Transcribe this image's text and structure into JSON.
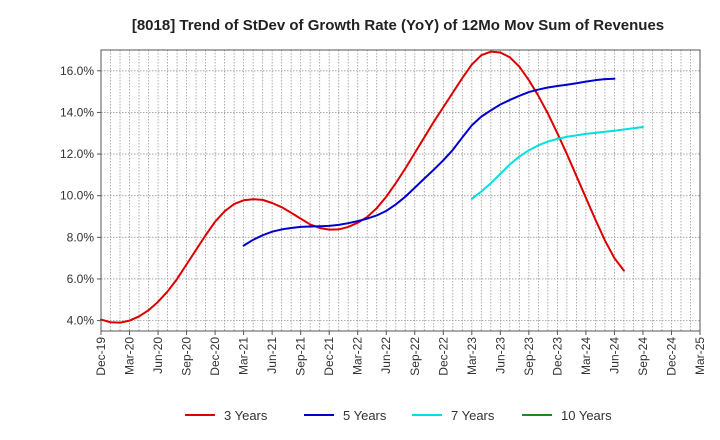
{
  "chart_data": {
    "type": "line",
    "title": "[8018]  Trend of StDev of Growth Rate (YoY) of 12Mo Mov Sum of Revenues",
    "xlabel": "",
    "ylabel": "",
    "ylim": [
      3.5,
      17.0
    ],
    "y_ticks": [
      4.0,
      6.0,
      8.0,
      10.0,
      12.0,
      14.0,
      16.0
    ],
    "y_tick_labels": [
      "4.0%",
      "6.0%",
      "8.0%",
      "10.0%",
      "12.0%",
      "14.0%",
      "16.0%"
    ],
    "x_tick_labels": [
      "Dec-19",
      "Mar-20",
      "Jun-20",
      "Sep-20",
      "Dec-20",
      "Mar-21",
      "Jun-21",
      "Sep-21",
      "Dec-21",
      "Mar-22",
      "Jun-22",
      "Sep-22",
      "Dec-22",
      "Mar-23",
      "Jun-23",
      "Sep-23",
      "Dec-23",
      "Mar-24",
      "Jun-24",
      "Sep-24",
      "Dec-24",
      "Mar-25"
    ],
    "x_range_months": [
      0,
      63
    ],
    "grid": true,
    "legend_position": "bottom",
    "series": [
      {
        "name": "3 Years",
        "color": "#dd0000",
        "points": [
          [
            0,
            4.05
          ],
          [
            1,
            3.92
          ],
          [
            2,
            3.9
          ],
          [
            3,
            4.0
          ],
          [
            4,
            4.2
          ],
          [
            5,
            4.5
          ],
          [
            6,
            4.9
          ],
          [
            7,
            5.4
          ],
          [
            8,
            6.0
          ],
          [
            9,
            6.7
          ],
          [
            10,
            7.4
          ],
          [
            11,
            8.1
          ],
          [
            12,
            8.75
          ],
          [
            13,
            9.25
          ],
          [
            14,
            9.6
          ],
          [
            15,
            9.78
          ],
          [
            16,
            9.83
          ],
          [
            17,
            9.8
          ],
          [
            18,
            9.65
          ],
          [
            19,
            9.45
          ],
          [
            20,
            9.18
          ],
          [
            21,
            8.9
          ],
          [
            22,
            8.62
          ],
          [
            23,
            8.45
          ],
          [
            24,
            8.37
          ],
          [
            25,
            8.38
          ],
          [
            26,
            8.5
          ],
          [
            27,
            8.7
          ],
          [
            28,
            8.98
          ],
          [
            29,
            9.4
          ],
          [
            30,
            9.95
          ],
          [
            31,
            10.6
          ],
          [
            32,
            11.3
          ],
          [
            33,
            12.05
          ],
          [
            34,
            12.8
          ],
          [
            35,
            13.55
          ],
          [
            36,
            14.25
          ],
          [
            37,
            14.95
          ],
          [
            38,
            15.65
          ],
          [
            39,
            16.3
          ],
          [
            40,
            16.75
          ],
          [
            41,
            16.92
          ],
          [
            42,
            16.88
          ],
          [
            43,
            16.65
          ],
          [
            44,
            16.2
          ],
          [
            45,
            15.55
          ],
          [
            46,
            14.8
          ],
          [
            47,
            13.95
          ],
          [
            48,
            13.0
          ],
          [
            49,
            12.0
          ],
          [
            50,
            10.95
          ],
          [
            51,
            9.9
          ],
          [
            52,
            8.85
          ],
          [
            53,
            7.85
          ],
          [
            54,
            7.0
          ],
          [
            55,
            6.4
          ]
        ]
      },
      {
        "name": "5 Years",
        "color": "#0000cc",
        "points": [
          [
            15,
            7.6
          ],
          [
            16,
            7.88
          ],
          [
            17,
            8.1
          ],
          [
            18,
            8.27
          ],
          [
            19,
            8.38
          ],
          [
            20,
            8.45
          ],
          [
            21,
            8.5
          ],
          [
            22,
            8.52
          ],
          [
            23,
            8.53
          ],
          [
            24,
            8.55
          ],
          [
            25,
            8.6
          ],
          [
            26,
            8.68
          ],
          [
            27,
            8.78
          ],
          [
            28,
            8.9
          ],
          [
            29,
            9.05
          ],
          [
            30,
            9.27
          ],
          [
            31,
            9.58
          ],
          [
            32,
            9.95
          ],
          [
            33,
            10.38
          ],
          [
            34,
            10.82
          ],
          [
            35,
            11.25
          ],
          [
            36,
            11.7
          ],
          [
            37,
            12.2
          ],
          [
            38,
            12.8
          ],
          [
            39,
            13.38
          ],
          [
            40,
            13.8
          ],
          [
            41,
            14.1
          ],
          [
            42,
            14.38
          ],
          [
            43,
            14.6
          ],
          [
            44,
            14.8
          ],
          [
            45,
            14.98
          ],
          [
            46,
            15.1
          ],
          [
            47,
            15.2
          ],
          [
            48,
            15.27
          ],
          [
            49,
            15.33
          ],
          [
            50,
            15.4
          ],
          [
            51,
            15.48
          ],
          [
            52,
            15.55
          ],
          [
            53,
            15.6
          ],
          [
            54,
            15.62
          ]
        ]
      },
      {
        "name": "7 Years",
        "color": "#00e0e0",
        "points": [
          [
            39,
            9.85
          ],
          [
            40,
            10.2
          ],
          [
            41,
            10.6
          ],
          [
            42,
            11.05
          ],
          [
            43,
            11.5
          ],
          [
            44,
            11.88
          ],
          [
            45,
            12.18
          ],
          [
            46,
            12.42
          ],
          [
            47,
            12.6
          ],
          [
            48,
            12.73
          ],
          [
            49,
            12.83
          ],
          [
            50,
            12.9
          ],
          [
            51,
            12.97
          ],
          [
            52,
            13.02
          ],
          [
            53,
            13.07
          ],
          [
            54,
            13.12
          ],
          [
            55,
            13.18
          ],
          [
            56,
            13.24
          ],
          [
            57,
            13.3
          ]
        ]
      },
      {
        "name": "10 Years",
        "color": "#228822",
        "points": []
      }
    ]
  }
}
